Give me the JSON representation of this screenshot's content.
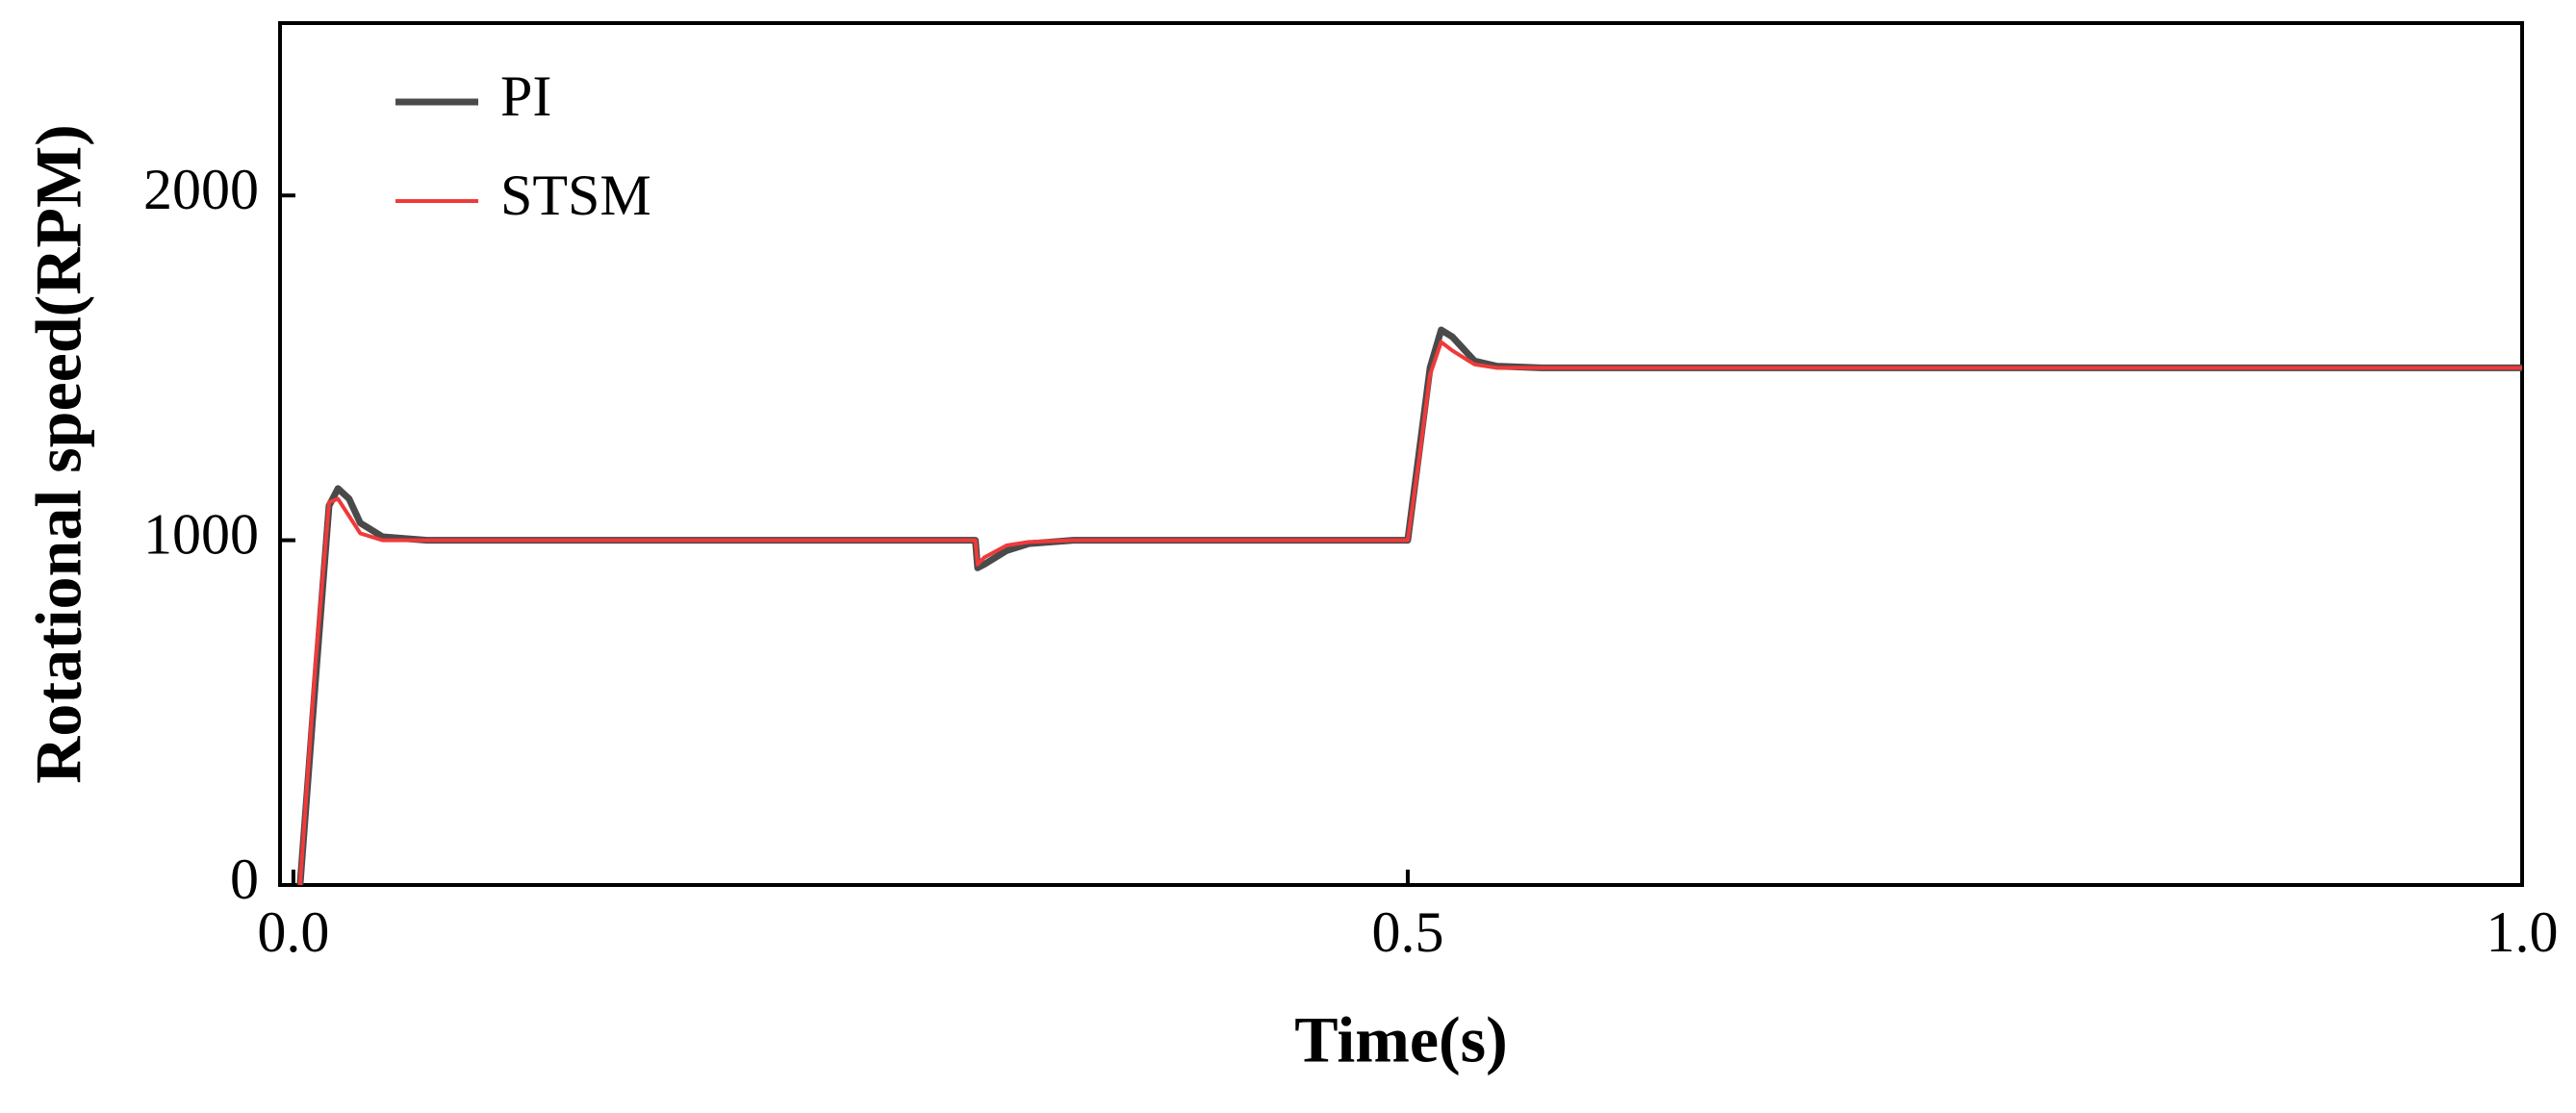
{
  "chart_data": {
    "type": "line",
    "x_label": "Time(s)",
    "y_label": "Rotational speed(RPM)",
    "x": [
      0.003,
      0.01,
      0.016,
      0.02,
      0.025,
      0.03,
      0.04,
      0.06,
      0.306,
      0.307,
      0.31,
      0.32,
      0.33,
      0.35,
      0.5,
      0.505,
      0.51,
      0.515,
      0.52,
      0.53,
      0.54,
      0.56,
      1.0
    ],
    "series": [
      {
        "name": "PI",
        "color": "#4a4a4a",
        "values": [
          0,
          600,
          1100,
          1150,
          1120,
          1050,
          1010,
          1000,
          1000,
          920,
          930,
          970,
          990,
          1000,
          1000,
          1250,
          1500,
          1610,
          1590,
          1520,
          1505,
          1500,
          1500
        ]
      },
      {
        "name": "STSM",
        "color": "#f03a3a",
        "values": [
          0,
          650,
          1110,
          1120,
          1070,
          1020,
          1000,
          1000,
          1000,
          930,
          950,
          985,
          995,
          1000,
          1000,
          1230,
          1480,
          1575,
          1550,
          1510,
          1500,
          1500,
          1500
        ]
      }
    ],
    "xlim": [
      -0.006,
      1
    ],
    "ylim": [
      0,
      2500
    ],
    "xticks": [
      {
        "value": 0,
        "label": "0.0"
      },
      0.5,
      {
        "value": 1,
        "label": "1.0"
      }
    ],
    "yticks": [
      0,
      1000,
      2000
    ],
    "legend": "upper left"
  }
}
